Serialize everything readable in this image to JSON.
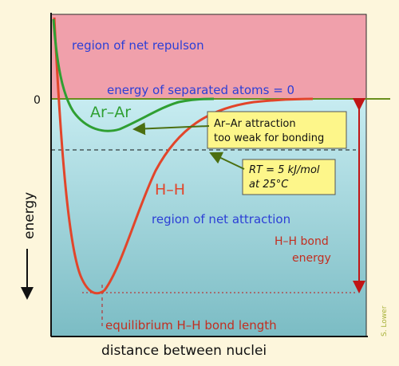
{
  "labels": {
    "repulsion_region": "region of net repulson",
    "separated_atoms": "energy of separated atoms = 0",
    "zero_tick": "0",
    "ar_curve": "Ar–Ar",
    "ar_callout_line1": "Ar–Ar attraction",
    "ar_callout_line2": "too weak for bonding",
    "rt_callout_line1": "RT = 5 kJ/mol",
    "rt_callout_line2": "at 25°C",
    "hh_curve": "H–H",
    "attraction_region": "region of net attraction",
    "bond_energy_line1": "H–H bond",
    "bond_energy_line2": "energy",
    "equilibrium": "equilibrium H–H bond length",
    "y_axis": "energy",
    "x_axis": "distance between nuclei",
    "credit": "S. Lower"
  },
  "colors": {
    "background": "#fdf6dc",
    "repulsion_fill": "#f0a0ab",
    "attraction_top": "#c7ecf1",
    "attraction_bottom": "#7bbcc4",
    "hh_curve": "#e2452a",
    "ar_curve": "#2f9f32",
    "zero_line": "#6a8f1e",
    "text_blue": "#2c3fd6",
    "text_red": "#c22e20",
    "callout_fill": "#fdf68a",
    "bond_arrow": "#c01515"
  }
}
